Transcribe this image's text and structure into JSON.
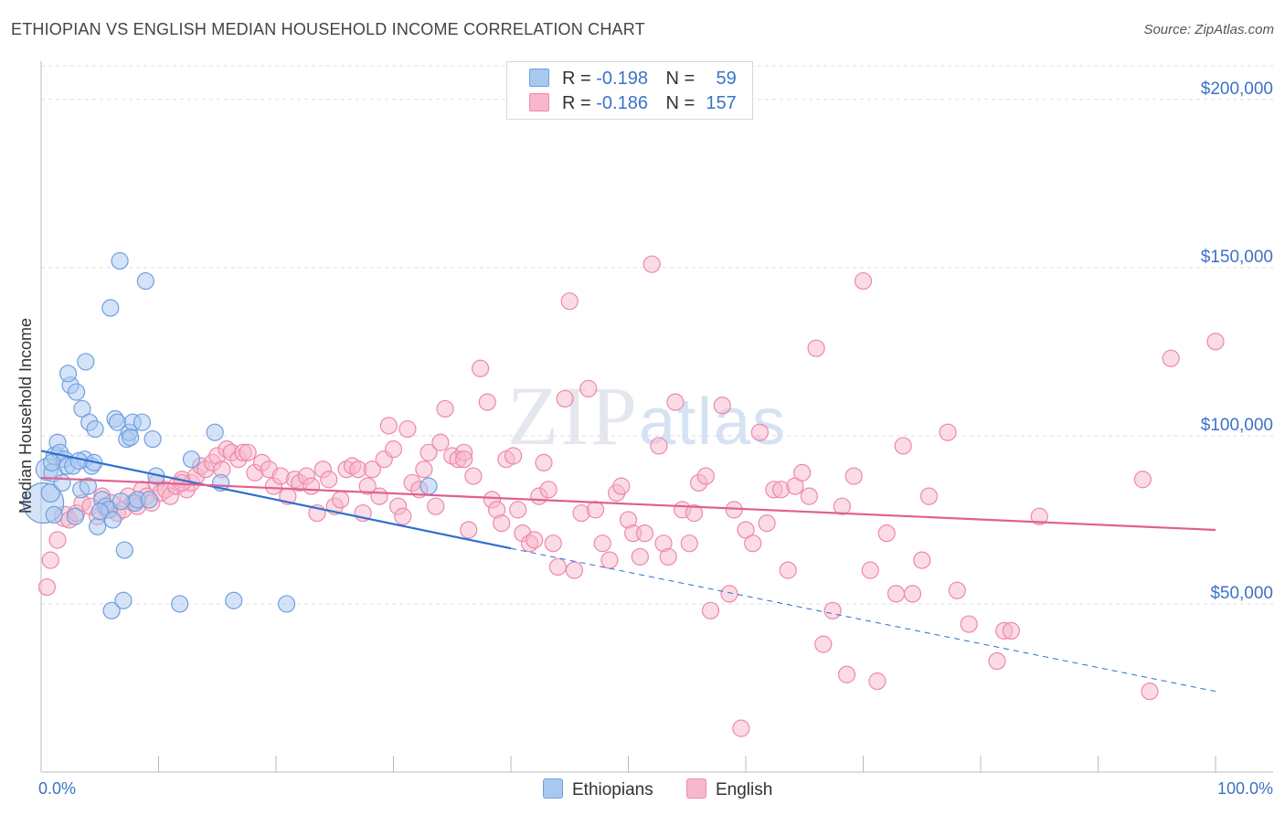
{
  "header": {
    "title": "ETHIOPIAN VS ENGLISH MEDIAN HOUSEHOLD INCOME CORRELATION CHART",
    "source": "Source: ZipAtlas.com"
  },
  "legend": {
    "rows": [
      {
        "r_label": "R =",
        "r_value": "-0.198",
        "n_label": "N =",
        "n_value": "59",
        "color": "#a9c8f0"
      },
      {
        "r_label": "R =",
        "r_value": "-0.186",
        "n_label": "N =",
        "n_value": "157",
        "color": "#f7b8cc"
      }
    ]
  },
  "watermark": {
    "zip": "ZIP",
    "atlas": "atlas"
  },
  "chart_data": {
    "type": "scatter",
    "title": "ETHIOPIAN VS ENGLISH MEDIAN HOUSEHOLD INCOME CORRELATION CHART",
    "xlabel": "",
    "ylabel": "Median Household Income",
    "xlim": [
      0,
      100
    ],
    "ylim": [
      0,
      210000
    ],
    "x_tick_labels": [
      "0.0%",
      "100.0%"
    ],
    "y_ticks": [
      50000,
      100000,
      150000,
      200000
    ],
    "y_tick_labels": [
      "$50,000",
      "$100,000",
      "$150,000",
      "$200,000"
    ],
    "grid": true,
    "legend_position": "top-center",
    "series": [
      {
        "name": "Ethiopians",
        "color": "#6f9fe0",
        "fill": "#a9c8f0",
        "trend": {
          "x0": 0,
          "y0": 95500,
          "x1": 40,
          "y1": 66500,
          "dash_to_x": 100,
          "dash_to_y": 24000,
          "color": "#2f6fd0"
        },
        "points": [
          [
            0.2,
            80000,
            22
          ],
          [
            0.5,
            90000,
            12
          ],
          [
            0.8,
            83000,
            10
          ],
          [
            1.0,
            89000,
            10
          ],
          [
            1.2,
            94000,
            10
          ],
          [
            1.4,
            98000,
            9
          ],
          [
            1.6,
            95000,
            9
          ],
          [
            1.8,
            86000,
            9
          ],
          [
            2.0,
            93000,
            9
          ],
          [
            2.2,
            91000,
            9
          ],
          [
            2.5,
            115000,
            9
          ],
          [
            2.7,
            91000,
            9
          ],
          [
            2.9,
            76000,
            9
          ],
          [
            3.0,
            113000,
            9
          ],
          [
            3.4,
            84000,
            9
          ],
          [
            3.5,
            108000,
            9
          ],
          [
            3.7,
            93000,
            9
          ],
          [
            3.8,
            122000,
            9
          ],
          [
            4.0,
            85000,
            9
          ],
          [
            4.1,
            104000,
            9
          ],
          [
            4.3,
            91000,
            9
          ],
          [
            4.5,
            92000,
            9
          ],
          [
            4.6,
            102000,
            9
          ],
          [
            4.8,
            73000,
            9
          ],
          [
            5.2,
            81000,
            9
          ],
          [
            5.5,
            79000,
            9
          ],
          [
            5.8,
            78000,
            9
          ],
          [
            5.9,
            138000,
            9
          ],
          [
            6.0,
            48000,
            9
          ],
          [
            6.1,
            75000,
            9
          ],
          [
            6.3,
            105000,
            9
          ],
          [
            6.5,
            104000,
            9
          ],
          [
            6.7,
            152000,
            9
          ],
          [
            7.0,
            51000,
            9
          ],
          [
            7.1,
            66000,
            9
          ],
          [
            7.3,
            99000,
            9
          ],
          [
            7.5,
            101000,
            9
          ],
          [
            7.8,
            104000,
            9
          ],
          [
            8.0,
            80000,
            9
          ],
          [
            8.2,
            81000,
            9
          ],
          [
            8.6,
            104000,
            9
          ],
          [
            8.9,
            146000,
            9
          ],
          [
            9.2,
            81000,
            9
          ],
          [
            9.5,
            99000,
            9
          ],
          [
            9.8,
            88000,
            9
          ],
          [
            11.8,
            50000,
            9
          ],
          [
            12.8,
            93000,
            9
          ],
          [
            14.8,
            101000,
            9
          ],
          [
            15.3,
            86000,
            9
          ],
          [
            16.4,
            51000,
            9
          ],
          [
            20.9,
            50000,
            9
          ],
          [
            33.0,
            85000,
            9
          ],
          [
            2.3,
            118500,
            9
          ],
          [
            5.0,
            77500,
            9
          ],
          [
            0.9,
            92000,
            9
          ],
          [
            3.2,
            92500,
            9
          ],
          [
            6.8,
            80500,
            9
          ],
          [
            7.6,
            99500,
            9
          ],
          [
            1.1,
            76500,
            9
          ]
        ]
      },
      {
        "name": "English",
        "color": "#ee88aa",
        "fill": "#f7b8cc",
        "trend": {
          "x0": 0,
          "y0": 87500,
          "x1": 100,
          "y1": 72000,
          "color": "#e0608f"
        },
        "points": [
          [
            0.5,
            55000,
            9
          ],
          [
            0.8,
            63000,
            9
          ],
          [
            1.4,
            69000,
            9
          ],
          [
            2.0,
            76000,
            11
          ],
          [
            2.4,
            75000,
            9
          ],
          [
            3.0,
            77000,
            9
          ],
          [
            3.5,
            80000,
            9
          ],
          [
            4.2,
            79000,
            9
          ],
          [
            4.8,
            76000,
            9
          ],
          [
            5.2,
            82000,
            9
          ],
          [
            5.6,
            78000,
            9
          ],
          [
            6.0,
            80000,
            9
          ],
          [
            6.5,
            77000,
            9
          ],
          [
            7.0,
            78000,
            9
          ],
          [
            7.4,
            82000,
            9
          ],
          [
            7.8,
            80000,
            9
          ],
          [
            8.2,
            79000,
            9
          ],
          [
            8.6,
            84000,
            9
          ],
          [
            9.0,
            82000,
            9
          ],
          [
            9.4,
            80000,
            9
          ],
          [
            9.8,
            86000,
            9
          ],
          [
            10.2,
            83000,
            9
          ],
          [
            10.6,
            84000,
            9
          ],
          [
            11.0,
            82000,
            9
          ],
          [
            11.5,
            85000,
            9
          ],
          [
            12.0,
            87000,
            9
          ],
          [
            12.4,
            84000,
            9
          ],
          [
            12.8,
            86000,
            9
          ],
          [
            13.2,
            88000,
            9
          ],
          [
            13.6,
            91000,
            9
          ],
          [
            14.0,
            90000,
            9
          ],
          [
            14.6,
            92000,
            9
          ],
          [
            15.0,
            94000,
            9
          ],
          [
            15.4,
            90000,
            9
          ],
          [
            15.8,
            96000,
            9
          ],
          [
            16.2,
            95000,
            9
          ],
          [
            16.8,
            93000,
            9
          ],
          [
            17.2,
            95000,
            9
          ],
          [
            17.6,
            95000,
            9
          ],
          [
            18.2,
            89000,
            9
          ],
          [
            18.8,
            92000,
            9
          ],
          [
            19.4,
            90000,
            9
          ],
          [
            19.8,
            85000,
            9
          ],
          [
            20.4,
            88000,
            9
          ],
          [
            21.0,
            82000,
            9
          ],
          [
            21.6,
            87000,
            9
          ],
          [
            22.0,
            86000,
            9
          ],
          [
            22.6,
            88000,
            9
          ],
          [
            23.0,
            85000,
            9
          ],
          [
            23.5,
            77000,
            9
          ],
          [
            24.0,
            90000,
            9
          ],
          [
            24.5,
            87000,
            9
          ],
          [
            25.0,
            79000,
            9
          ],
          [
            25.5,
            81000,
            9
          ],
          [
            26.0,
            90000,
            9
          ],
          [
            26.5,
            91000,
            9
          ],
          [
            27.0,
            90000,
            9
          ],
          [
            27.4,
            77000,
            9
          ],
          [
            27.8,
            85000,
            9
          ],
          [
            28.2,
            90000,
            9
          ],
          [
            28.8,
            82000,
            9
          ],
          [
            29.2,
            93000,
            9
          ],
          [
            29.6,
            103000,
            9
          ],
          [
            30.0,
            96000,
            9
          ],
          [
            30.4,
            79000,
            9
          ],
          [
            30.8,
            76000,
            9
          ],
          [
            31.2,
            102000,
            9
          ],
          [
            31.6,
            86000,
            9
          ],
          [
            32.2,
            84000,
            9
          ],
          [
            32.6,
            90000,
            9
          ],
          [
            33.0,
            95000,
            9
          ],
          [
            33.6,
            79000,
            9
          ],
          [
            34.0,
            98000,
            9
          ],
          [
            34.4,
            108000,
            9
          ],
          [
            35.0,
            94000,
            9
          ],
          [
            35.5,
            93000,
            9
          ],
          [
            36.0,
            95000,
            9
          ],
          [
            36.4,
            72000,
            9
          ],
          [
            36.8,
            88000,
            9
          ],
          [
            37.4,
            120000,
            9
          ],
          [
            38.0,
            110000,
            9
          ],
          [
            38.4,
            81000,
            9
          ],
          [
            38.8,
            78000,
            9
          ],
          [
            39.2,
            74000,
            9
          ],
          [
            39.6,
            93000,
            9
          ],
          [
            40.2,
            94000,
            9
          ],
          [
            40.6,
            78000,
            9
          ],
          [
            41.0,
            71000,
            9
          ],
          [
            41.6,
            68000,
            9
          ],
          [
            42.0,
            69000,
            9
          ],
          [
            42.4,
            82000,
            9
          ],
          [
            42.8,
            92000,
            9
          ],
          [
            43.2,
            84000,
            9
          ],
          [
            43.6,
            68000,
            9
          ],
          [
            44.0,
            61000,
            9
          ],
          [
            44.6,
            111000,
            9
          ],
          [
            45.0,
            140000,
            9
          ],
          [
            45.4,
            60000,
            9
          ],
          [
            46.0,
            77000,
            9
          ],
          [
            46.6,
            114000,
            9
          ],
          [
            47.2,
            78000,
            9
          ],
          [
            47.8,
            68000,
            9
          ],
          [
            48.4,
            63000,
            9
          ],
          [
            49.0,
            83000,
            9
          ],
          [
            49.4,
            85000,
            9
          ],
          [
            50.0,
            75000,
            9
          ],
          [
            50.4,
            71000,
            9
          ],
          [
            51.0,
            64000,
            9
          ],
          [
            51.4,
            71000,
            9
          ],
          [
            52.0,
            151000,
            9
          ],
          [
            52.6,
            97000,
            9
          ],
          [
            53.0,
            68000,
            9
          ],
          [
            53.4,
            64000,
            9
          ],
          [
            54.0,
            110000,
            9
          ],
          [
            54.6,
            78000,
            9
          ],
          [
            55.2,
            68000,
            9
          ],
          [
            55.6,
            77000,
            9
          ],
          [
            56.0,
            86000,
            9
          ],
          [
            56.6,
            88000,
            9
          ],
          [
            57.0,
            48000,
            9
          ],
          [
            58.0,
            109000,
            9
          ],
          [
            58.6,
            53000,
            9
          ],
          [
            59.0,
            78000,
            9
          ],
          [
            59.6,
            13000,
            9
          ],
          [
            60.0,
            72000,
            9
          ],
          [
            60.6,
            68000,
            9
          ],
          [
            61.2,
            101000,
            9
          ],
          [
            61.8,
            74000,
            9
          ],
          [
            62.4,
            84000,
            9
          ],
          [
            63.0,
            84000,
            9
          ],
          [
            63.6,
            60000,
            9
          ],
          [
            64.2,
            85000,
            9
          ],
          [
            64.8,
            89000,
            9
          ],
          [
            65.4,
            82000,
            9
          ],
          [
            66.0,
            126000,
            9
          ],
          [
            66.6,
            38000,
            9
          ],
          [
            67.4,
            48000,
            9
          ],
          [
            68.2,
            79000,
            9
          ],
          [
            68.6,
            29000,
            9
          ],
          [
            69.2,
            88000,
            9
          ],
          [
            70.0,
            146000,
            9
          ],
          [
            70.6,
            60000,
            9
          ],
          [
            71.2,
            27000,
            9
          ],
          [
            72.0,
            71000,
            9
          ],
          [
            72.8,
            53000,
            9
          ],
          [
            73.4,
            97000,
            9
          ],
          [
            74.2,
            53000,
            9
          ],
          [
            75.0,
            63000,
            9
          ],
          [
            75.6,
            82000,
            9
          ],
          [
            77.2,
            101000,
            9
          ],
          [
            78.0,
            54000,
            9
          ],
          [
            79.0,
            44000,
            9
          ],
          [
            81.4,
            33000,
            9
          ],
          [
            82.0,
            42000,
            9
          ],
          [
            82.6,
            42000,
            9
          ],
          [
            85.0,
            76000,
            9
          ],
          [
            93.8,
            87000,
            9
          ],
          [
            94.4,
            24000,
            9
          ],
          [
            96.2,
            123000,
            9
          ],
          [
            100.0,
            128000,
            9
          ],
          [
            12.0,
            86000,
            9
          ],
          [
            36.0,
            93000,
            9
          ]
        ]
      }
    ]
  },
  "bottom_legend": {
    "items": [
      {
        "label": "Ethiopians",
        "color": "#a9c8f0",
        "border": "#6f9fe0"
      },
      {
        "label": "English",
        "color": "#f7b8cc",
        "border": "#ee88aa"
      }
    ]
  }
}
